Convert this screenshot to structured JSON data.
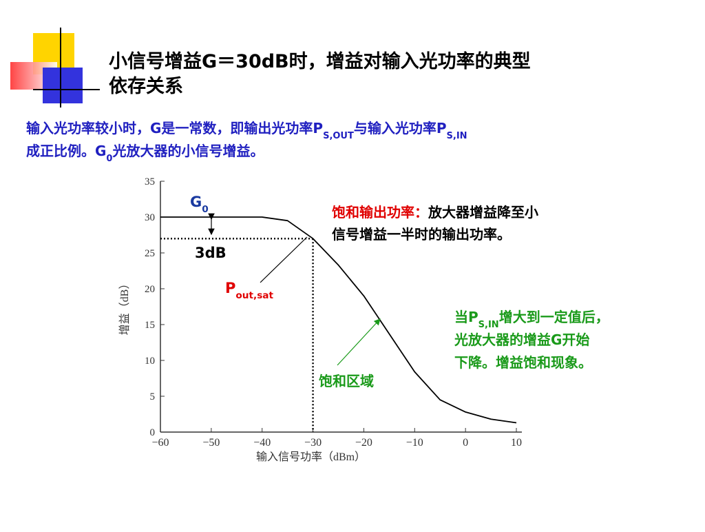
{
  "slide": {
    "title_lines": [
      "小信号增益G＝30dB时，增益对输入光功率的典型",
      "依存关系"
    ],
    "intro_lines": [
      [
        {
          "text": "输入光功率较小时，G是一常数，即输出光功率P"
        },
        {
          "text": "S,OUT",
          "sub": true
        },
        {
          "text": "与输入光功率P"
        },
        {
          "text": "S,IN",
          "sub": true
        }
      ],
      [
        {
          "text": "成正比例。G"
        },
        {
          "text": "0",
          "sub": true
        },
        {
          "text": "光放大器的小信号增益。"
        }
      ]
    ]
  },
  "chart_data": {
    "type": "line",
    "x_label": "输入信号功率（dBm）",
    "y_label": "增益（dB）",
    "x": [
      -60,
      -40,
      -35,
      -30,
      -25,
      -20,
      -15,
      -10,
      -5,
      0,
      5,
      10
    ],
    "series": [
      {
        "color": "#000000",
        "values": [
          30,
          30,
          29.5,
          27,
          23.3,
          19,
          13.7,
          8.4,
          4.5,
          2.8,
          1.8,
          1.3
        ]
      }
    ],
    "xlim": [
      -60,
      10
    ],
    "ylim": [
      0,
      35
    ],
    "xticks": [
      {
        "value": -60,
        "label": "−60"
      },
      {
        "value": -50,
        "label": "−50"
      },
      {
        "value": -40,
        "label": "−40"
      },
      {
        "value": -30,
        "label": "−30"
      },
      {
        "value": -20,
        "label": "−20"
      },
      {
        "value": -10,
        "label": "−10"
      },
      0,
      10
    ],
    "yticks": [
      0,
      5,
      10,
      15,
      20,
      25,
      30,
      35
    ],
    "saturation_point": {
      "x": -30,
      "y": 27
    },
    "g0_label": [
      {
        "text": "G"
      },
      {
        "text": "0",
        "sub": true
      }
    ],
    "db_label": "3dB",
    "pout_label": [
      {
        "text": "P"
      },
      {
        "text": "out,sat",
        "sub": true
      }
    ],
    "sat_title": "饱和输出功率：",
    "sat_desc_lines": [
      "放大器增益降至小",
      "信号增益一半时的输出功率。"
    ],
    "region_label": "饱和区域",
    "note_lines": [
      [
        {
          "text": "当P"
        },
        {
          "text": "S,IN",
          "sub": true
        },
        {
          "text": "增大到一定值后，"
        }
      ],
      [
        {
          "text": "光放大器的增益G开始"
        }
      ],
      [
        {
          "text": "下降。增益饱和现象。"
        }
      ]
    ]
  }
}
